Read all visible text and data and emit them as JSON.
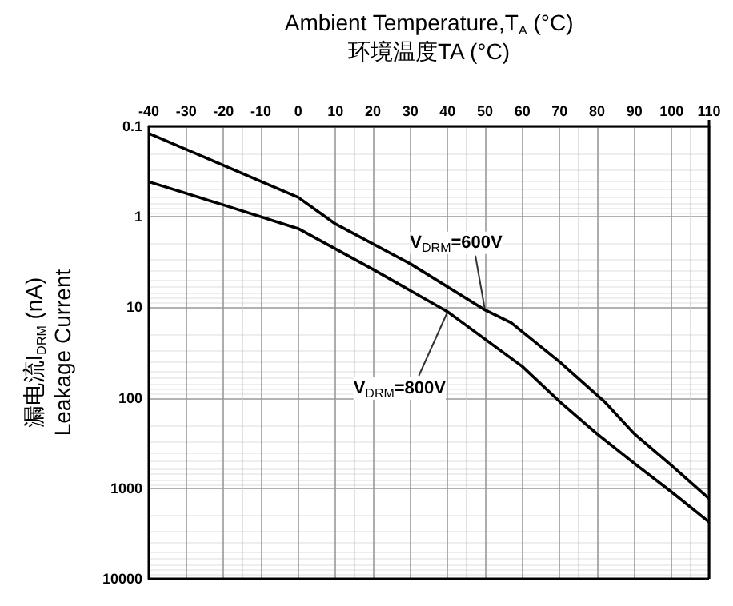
{
  "chart_data": {
    "type": "line",
    "xlabel": "Ambient Temperature,T$_{A}$ (°C)\n环境温度TA (°C)",
    "ylabel": "漏电流I$_{DRM}$ (nA)\nLeakage Current",
    "x": [
      -40,
      -20,
      0,
      10,
      30,
      50,
      57,
      70,
      82,
      90,
      100,
      110
    ],
    "series": [
      {
        "color": "#000000",
        "values": [
          0.12,
          0.27,
          0.61,
          1.2,
          3.3,
          10.7,
          14.8,
          40,
          110,
          250,
          560,
          1300
        ]
      },
      {
        "color": "#000000",
        "x": [
          -40,
          -20,
          0,
          20,
          40,
          44,
          60,
          70,
          80,
          90,
          100,
          110
        ],
        "values": [
          0.41,
          0.74,
          1.35,
          3.8,
          11.2,
          14.8,
          45,
          110,
          250,
          530,
          1100,
          2350
        ]
      }
    ],
    "annotations": [
      {
        "text": "V$_{DRM}$=600V",
        "x": 50,
        "y": 10.7
      },
      {
        "text": "V$_{DRM}$=800V",
        "x": 40,
        "y": 11.2
      }
    ],
    "xlim": [
      -40,
      110
    ],
    "xticks": [
      -40,
      -30,
      -20,
      -10,
      0,
      10,
      20,
      30,
      40,
      50,
      60,
      70,
      80,
      90,
      100,
      110
    ],
    "ylim": [
      10000,
      0.1
    ],
    "yticks": [
      0.1,
      1,
      10,
      100,
      1000,
      10000
    ],
    "log": true,
    "grid": true,
    "marker": "none",
    "line_style": "solid"
  }
}
